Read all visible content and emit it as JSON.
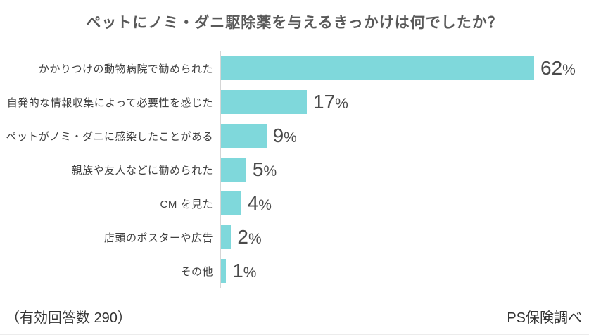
{
  "title": "ペットにノミ・ダニ駆除薬を与えるきっかけは何でしたか？",
  "footer": {
    "left": "（有効回答数 290）",
    "right": "PS保険調べ"
  },
  "colors": {
    "bar": "#7FD8DB",
    "axis_line": "#d5d5d5",
    "title_text": "#595959",
    "label_text": "#3f3f3f",
    "value_text": "#4a4a4a"
  },
  "chart_data": {
    "type": "bar",
    "orientation": "horizontal",
    "title": "ペットにノミ・ダニ駆除薬を与えるきっかけは何でしたか？",
    "categories": [
      "かかりつけの動物病院で勧められた",
      "自発的な情報収集によって必要性を感じた",
      "ペットがノミ・ダニに感染したことがある",
      "親族や友人などに勧められた",
      "CM を見た",
      "店頭のポスターや広告",
      "その他"
    ],
    "values": [
      62,
      17,
      9,
      5,
      4,
      2,
      1
    ],
    "value_labels": [
      "62%",
      "17%",
      "9%",
      "5%",
      "4%",
      "2%",
      "1%"
    ],
    "unit": "%",
    "xlim": [
      0,
      62
    ],
    "grid": false,
    "legend": false,
    "sample_size_note": "（有効回答数 290）",
    "source": "PS保険調べ"
  }
}
